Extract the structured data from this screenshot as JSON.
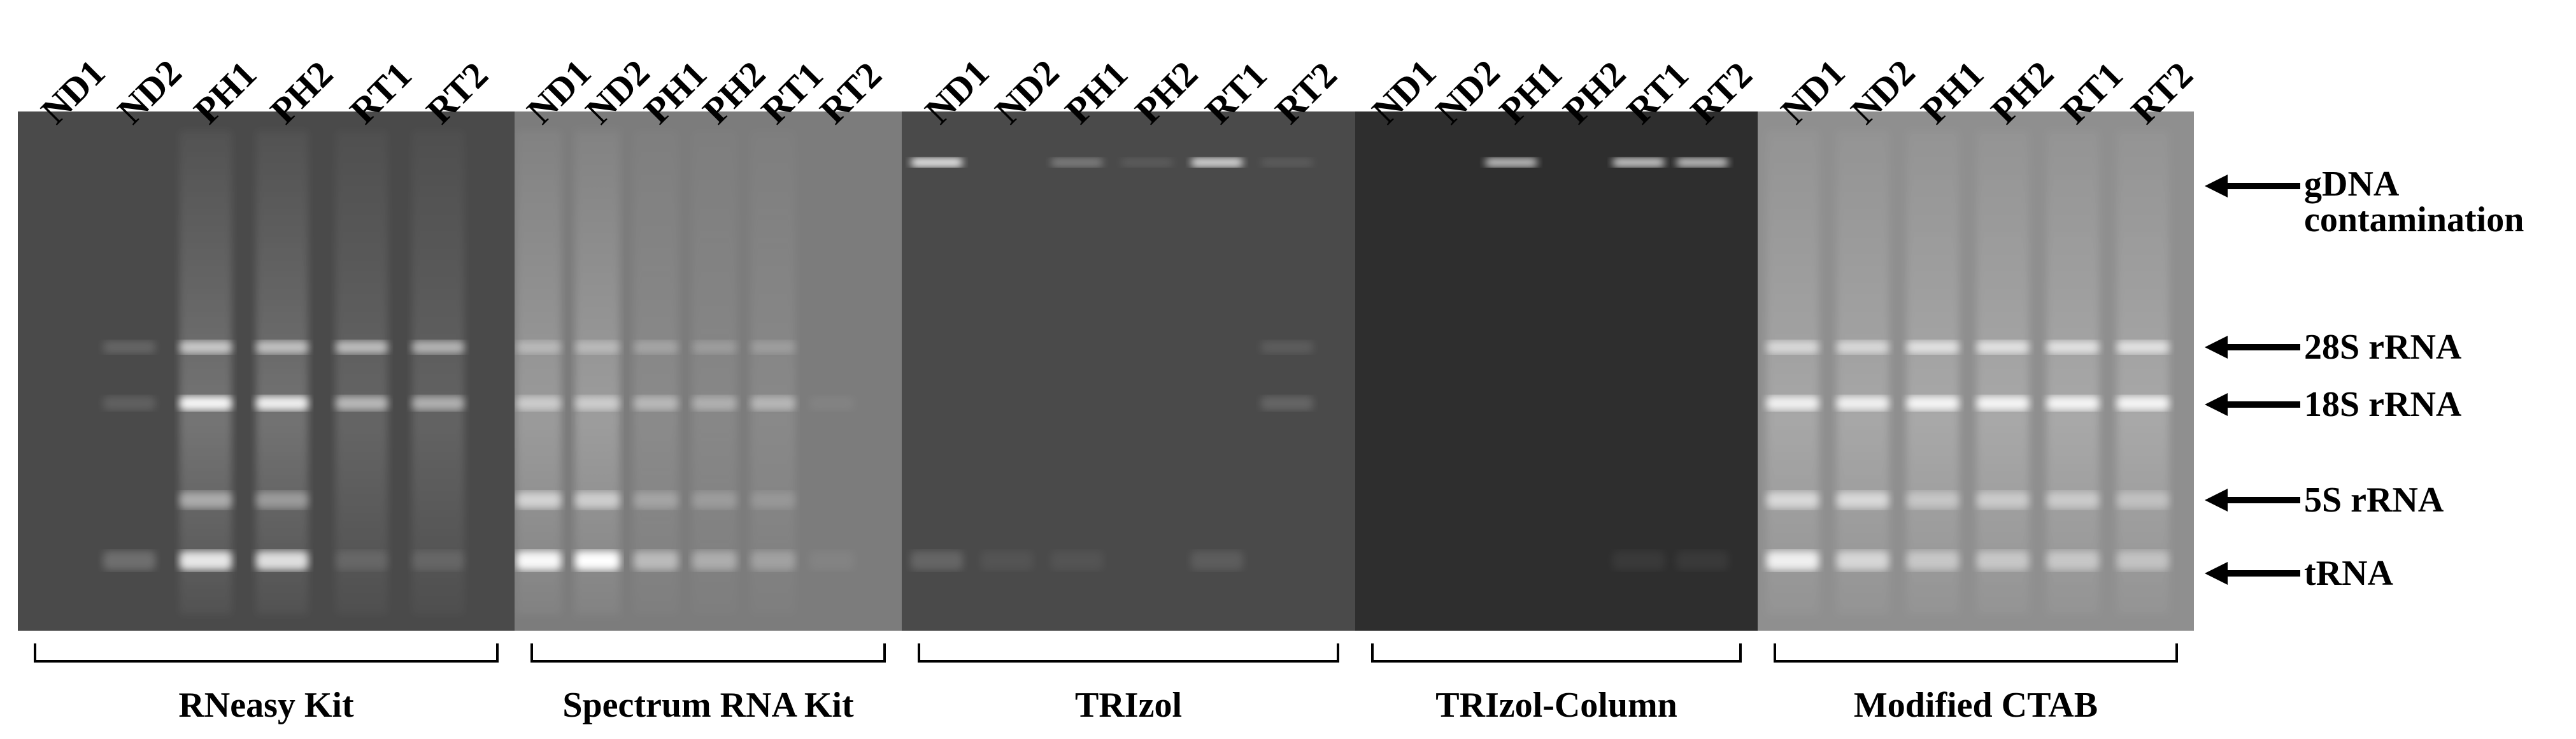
{
  "lanes": [
    "ND1",
    "ND2",
    "PH1",
    "PH2",
    "RT1",
    "RT2"
  ],
  "methods": [
    {
      "name": "RNeasy Kit",
      "bg": "#4a4a4a"
    },
    {
      "name": "Spectrum RNA Kit",
      "bg": "#7c7c7c"
    },
    {
      "name": "TRIzol",
      "bg": "#4a4a4a"
    },
    {
      "name": "TRIzol-Column",
      "bg": "#2e2e2e"
    },
    {
      "name": "Modified CTAB",
      "bg": "#8f8f8f"
    }
  ],
  "markers": [
    {
      "line1": "gDNA",
      "line2": "contamination"
    },
    {
      "line1": "28S rRNA"
    },
    {
      "line1": "18S rRNA"
    },
    {
      "line1": "5S rRNA"
    },
    {
      "line1": "tRNA"
    }
  ]
}
